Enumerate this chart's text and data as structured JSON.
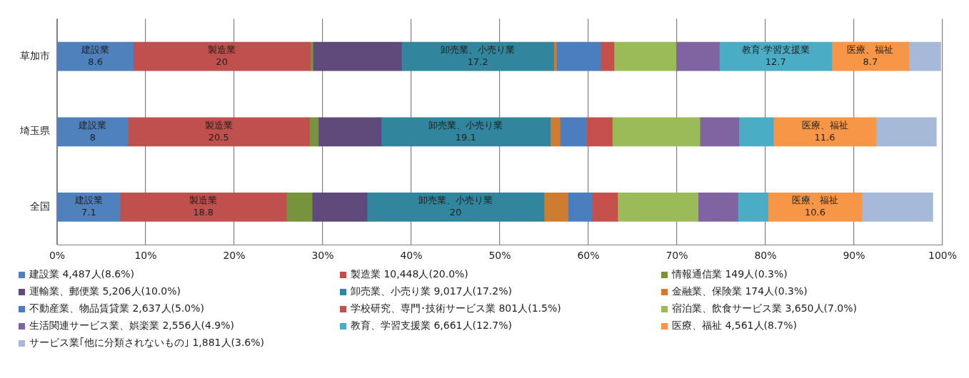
{
  "chart_data": {
    "type": "bar",
    "orientation": "horizontal",
    "stacked": true,
    "categories": [
      "草加市",
      "埼玉県",
      "全国"
    ],
    "xlim": [
      0,
      100
    ],
    "xticks": [
      {
        "value": 0,
        "label": "0%"
      },
      {
        "value": 10,
        "label": "10%"
      },
      {
        "value": 20,
        "label": "20%"
      },
      {
        "value": 30,
        "label": "30%"
      },
      {
        "value": 40,
        "label": "40%"
      },
      {
        "value": 50,
        "label": "50%"
      },
      {
        "value": 60,
        "label": "60%"
      },
      {
        "value": 70,
        "label": "70%"
      },
      {
        "value": 80,
        "label": "80%"
      },
      {
        "value": 90,
        "label": "90%"
      },
      {
        "value": 100,
        "label": "100%"
      }
    ],
    "grid": "x",
    "legend": "bottom",
    "series": [
      {
        "name": "建設業 4,487人(8.6%)",
        "color": "#4f81bd",
        "values": [
          8.6,
          8,
          7.1
        ],
        "value_labels": [
          "建設業\n8.6",
          "建設業\n8",
          "建設業\n7.1"
        ]
      },
      {
        "name": "製造業 10,448人(20.0%)",
        "color": "#c0504d",
        "values": [
          20,
          20.5,
          18.8
        ],
        "value_labels": [
          "製造業\n20",
          "製造業\n20.5",
          "製造業\n18.8"
        ]
      },
      {
        "name": "情報通信業 149人(0.3%)",
        "color": "#77933c",
        "values": [
          0.3,
          1.0,
          2.9
        ]
      },
      {
        "name": "運輸業、郵便業 5,206人(10.0%)",
        "color": "#604a7b",
        "values": [
          10,
          7.1,
          6.2
        ]
      },
      {
        "name": "卸売業、小売り業 9,017人(17.2%)",
        "color": "#31859c",
        "values": [
          17.2,
          19.1,
          20
        ],
        "value_labels": [
          "卸売業、小売り業\n17.2",
          "卸売業、小売り業\n19.1",
          "卸売業、小売り業\n20"
        ]
      },
      {
        "name": "金融業、保険業 174人(0.3%)",
        "color": "#d07c30",
        "values": [
          0.3,
          1.1,
          2.7
        ]
      },
      {
        "name": "不動産業、物品賃貸業 2,637人(5.0%)",
        "color": "#4a7ebf",
        "values": [
          5,
          3.0,
          2.7
        ]
      },
      {
        "name": "学校研究、専門･技術サービス業 801人(1.5%)",
        "color": "#c44f4b",
        "values": [
          1.5,
          2.9,
          2.9
        ]
      },
      {
        "name": "宿泊業、飲食サービス業 3,650人(7.0%)",
        "color": "#9bbb59",
        "values": [
          7,
          9.9,
          9.1
        ]
      },
      {
        "name": "生活関連サービス業、娯楽業 2,556人(4.9%)",
        "color": "#8064a2",
        "values": [
          4.9,
          4.4,
          4.5
        ]
      },
      {
        "name": "教育、学習支援業 6,661人(12.7%)",
        "color": "#4bacc6",
        "values": [
          12.7,
          3.9,
          3.4
        ],
        "value_labels": [
          "教育·学習支援業\n12.7",
          null,
          null
        ]
      },
      {
        "name": "医療、福祉 4,561人(8.7%)",
        "color": "#f79646",
        "values": [
          8.7,
          11.6,
          10.6
        ],
        "value_labels": [
          "医療、福祉\n8.7",
          "医療、福祉\n11.6",
          "医療、福祉\n10.6"
        ]
      },
      {
        "name": "サービス業｢他に分類されないもの｣ 1,881人(3.6%)",
        "color": "#a7b9d8",
        "values": [
          3.6,
          6.8,
          8.0
        ]
      }
    ]
  }
}
